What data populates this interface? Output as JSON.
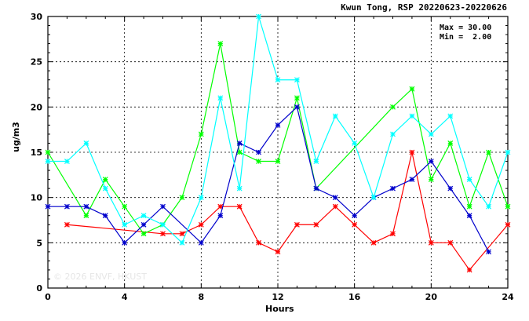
{
  "watermark": "© 2026  ENVF, HKUST",
  "chart_data": {
    "type": "line",
    "title": "Kwun Tong, RSP 20220623-20220626",
    "xlabel": "Hours",
    "ylabel": "ug/m3",
    "xlim": [
      0,
      24
    ],
    "ylim": [
      0,
      30
    ],
    "xticks": [
      0,
      4,
      8,
      12,
      16,
      20,
      24
    ],
    "yticks": [
      0,
      5,
      10,
      15,
      20,
      25,
      30
    ],
    "grid": true,
    "stats": {
      "max_label": "Max =",
      "max_value": "30.00",
      "min_label": "Min =",
      "min_value": "2.00"
    },
    "series": [
      {
        "color": "#ff0000",
        "points": [
          [
            1,
            7
          ],
          [
            6,
            6
          ],
          [
            7,
            6
          ],
          [
            8,
            7
          ],
          [
            9,
            9
          ],
          [
            10,
            9
          ],
          [
            11,
            5
          ],
          [
            12,
            4
          ],
          [
            13,
            7
          ],
          [
            14,
            7
          ],
          [
            15,
            9
          ],
          [
            16,
            7
          ],
          [
            17,
            5
          ],
          [
            18,
            6
          ],
          [
            19,
            15
          ],
          [
            20,
            5
          ],
          [
            21,
            5
          ],
          [
            22,
            2
          ],
          [
            24,
            7
          ]
        ]
      },
      {
        "color": "#00ff00",
        "points": [
          [
            0,
            15
          ],
          [
            2,
            8
          ],
          [
            3,
            12
          ],
          [
            4,
            9
          ],
          [
            5,
            6
          ],
          [
            6,
            7
          ],
          [
            7,
            10
          ],
          [
            8,
            17
          ],
          [
            9,
            27
          ],
          [
            10,
            15
          ],
          [
            11,
            14
          ],
          [
            12,
            14
          ],
          [
            13,
            21
          ],
          [
            14,
            11
          ],
          [
            18,
            20
          ],
          [
            19,
            22
          ],
          [
            20,
            12
          ],
          [
            21,
            16
          ],
          [
            22,
            9
          ],
          [
            23,
            15
          ],
          [
            24,
            9
          ]
        ]
      },
      {
        "color": "#0000cc",
        "points": [
          [
            0,
            9
          ],
          [
            1,
            9
          ],
          [
            2,
            9
          ],
          [
            3,
            8
          ],
          [
            4,
            5
          ],
          [
            5,
            7
          ],
          [
            6,
            9
          ],
          [
            8,
            5
          ],
          [
            9,
            8
          ],
          [
            10,
            16
          ],
          [
            11,
            15
          ],
          [
            12,
            18
          ],
          [
            13,
            20
          ],
          [
            14,
            11
          ],
          [
            15,
            10
          ],
          [
            16,
            8
          ],
          [
            17,
            10
          ],
          [
            18,
            11
          ],
          [
            19,
            12
          ],
          [
            20,
            14
          ],
          [
            21,
            11
          ],
          [
            22,
            8
          ],
          [
            23,
            4
          ]
        ]
      },
      {
        "color": "#00ffff",
        "points": [
          [
            0,
            14
          ],
          [
            1,
            14
          ],
          [
            2,
            16
          ],
          [
            3,
            11
          ],
          [
            4,
            7
          ],
          [
            5,
            8
          ],
          [
            6,
            7
          ],
          [
            7,
            5
          ],
          [
            8,
            10
          ],
          [
            9,
            21
          ],
          [
            10,
            11
          ],
          [
            11,
            30
          ],
          [
            12,
            23
          ],
          [
            13,
            23
          ],
          [
            14,
            14
          ],
          [
            15,
            19
          ],
          [
            16,
            16
          ],
          [
            17,
            10
          ],
          [
            18,
            17
          ],
          [
            19,
            19
          ],
          [
            20,
            17
          ],
          [
            21,
            19
          ],
          [
            22,
            12
          ],
          [
            23,
            9
          ],
          [
            24,
            15
          ]
        ]
      }
    ]
  }
}
